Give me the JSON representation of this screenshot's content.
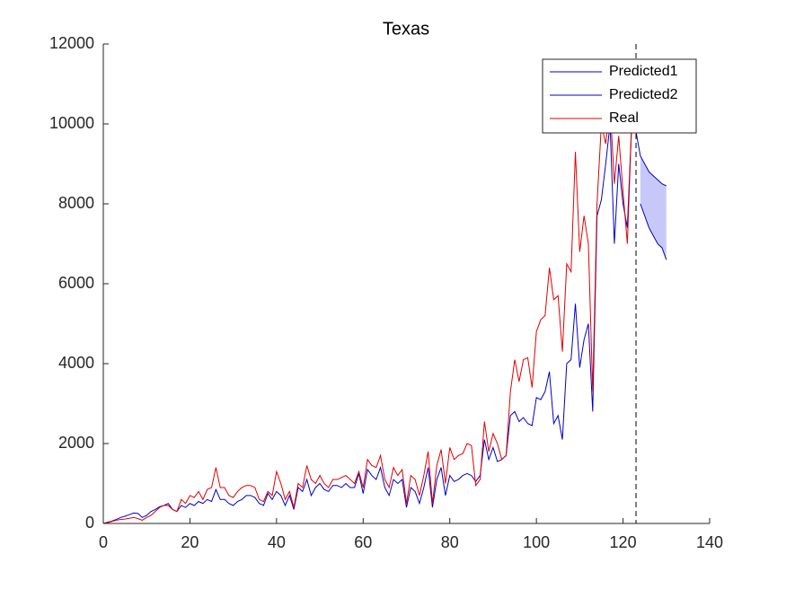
{
  "chart_data": {
    "type": "line",
    "title": "Texas",
    "x": [
      0,
      1,
      2,
      3,
      4,
      5,
      6,
      7,
      8,
      9,
      10,
      11,
      12,
      13,
      14,
      15,
      16,
      17,
      18,
      19,
      20,
      21,
      22,
      23,
      24,
      25,
      26,
      27,
      28,
      29,
      30,
      31,
      32,
      33,
      34,
      35,
      36,
      37,
      38,
      39,
      40,
      41,
      42,
      43,
      44,
      45,
      46,
      47,
      48,
      49,
      50,
      51,
      52,
      53,
      54,
      55,
      56,
      57,
      58,
      59,
      60,
      61,
      62,
      63,
      64,
      65,
      66,
      67,
      68,
      69,
      70,
      71,
      72,
      73,
      74,
      75,
      76,
      77,
      78,
      79,
      80,
      81,
      82,
      83,
      84,
      85,
      86,
      87,
      88,
      89,
      90,
      91,
      92,
      93,
      94,
      95,
      96,
      97,
      98,
      99,
      100,
      101,
      102,
      103,
      104,
      105,
      106,
      107,
      108,
      109,
      110,
      111,
      112,
      113,
      114,
      115,
      116,
      117,
      118,
      119,
      120,
      121,
      122,
      123,
      124,
      125,
      126,
      127,
      128,
      129,
      130
    ],
    "series": [
      {
        "name": "Predicted1",
        "color": "#0000c8",
        "values": [
          0,
          30,
          60,
          100,
          150,
          180,
          220,
          260,
          250,
          150,
          200,
          300,
          350,
          420,
          450,
          500,
          350,
          300,
          450,
          400,
          500,
          450,
          550,
          500,
          600,
          550,
          850,
          600,
          600,
          500,
          450,
          550,
          600,
          700,
          700,
          650,
          500,
          450,
          750,
          600,
          800,
          700,
          450,
          700,
          350,
          900,
          800,
          1100,
          700,
          900,
          1000,
          850,
          800,
          950,
          950,
          900,
          1000,
          900,
          900,
          1250,
          750,
          1350,
          1200,
          1100,
          1400,
          900,
          700,
          1100,
          1000,
          1100,
          400,
          900,
          800,
          500,
          900,
          1400,
          400,
          1100,
          1400,
          700,
          1200,
          1050,
          1100,
          1200,
          1250,
          1200,
          1050,
          1200,
          2100,
          1600,
          1900,
          1550,
          1600,
          1700,
          2700,
          2800,
          2550,
          2650,
          2500,
          2450,
          3150,
          3100,
          3300,
          3800,
          2500,
          2700,
          2100,
          4000,
          4100,
          5500,
          3900,
          4600,
          5000,
          2800,
          7700,
          8100,
          9000,
          10000,
          7000,
          9000,
          8000,
          7400,
          10000,
          9800,
          9200,
          9000,
          8800,
          8700,
          8600,
          8500,
          8450
        ]
      },
      {
        "name": "Predicted2",
        "color": "#0000c8",
        "values": [
          null,
          null,
          null,
          null,
          null,
          null,
          null,
          null,
          null,
          null,
          null,
          null,
          null,
          null,
          null,
          null,
          null,
          null,
          null,
          null,
          null,
          null,
          null,
          null,
          null,
          null,
          null,
          null,
          null,
          null,
          null,
          null,
          null,
          null,
          null,
          null,
          null,
          null,
          null,
          null,
          null,
          null,
          null,
          null,
          null,
          null,
          null,
          null,
          null,
          null,
          null,
          null,
          null,
          null,
          null,
          null,
          null,
          null,
          null,
          null,
          null,
          null,
          null,
          null,
          null,
          null,
          null,
          null,
          null,
          null,
          null,
          null,
          null,
          null,
          null,
          null,
          null,
          null,
          null,
          null,
          null,
          null,
          null,
          null,
          null,
          null,
          null,
          null,
          null,
          null,
          null,
          null,
          null,
          null,
          null,
          null,
          null,
          null,
          null,
          null,
          null,
          null,
          null,
          null,
          null,
          null,
          null,
          null,
          null,
          null,
          null,
          null,
          null,
          null,
          null,
          null,
          null,
          null,
          null,
          null,
          null,
          null,
          null,
          null,
          8000,
          7700,
          7400,
          7200,
          7000,
          6900,
          6600
        ]
      },
      {
        "name": "Real",
        "color": "#e00000",
        "values": [
          0,
          20,
          50,
          80,
          100,
          110,
          130,
          150,
          120,
          80,
          150,
          200,
          300,
          400,
          450,
          450,
          350,
          300,
          600,
          500,
          700,
          650,
          800,
          600,
          850,
          900,
          1400,
          900,
          900,
          700,
          650,
          800,
          900,
          950,
          950,
          900,
          600,
          550,
          800,
          700,
          1300,
          1000,
          600,
          800,
          400,
          1000,
          900,
          1450,
          1100,
          1000,
          1200,
          1000,
          900,
          1100,
          1100,
          1150,
          1200,
          1100,
          1000,
          1300,
          900,
          1600,
          1450,
          1400,
          1700,
          1100,
          900,
          1400,
          1200,
          1350,
          500,
          1200,
          1100,
          700,
          1200,
          1800,
          500,
          1450,
          1850,
          1000,
          1900,
          1600,
          1700,
          1750,
          2000,
          1950,
          950,
          1100,
          2550,
          1800,
          2250,
          2000,
          1600,
          1700,
          3300,
          4100,
          3550,
          4100,
          4150,
          3400,
          4800,
          5100,
          5200,
          6400,
          5600,
          5700,
          4300,
          6500,
          6300,
          9300,
          6800,
          7700,
          7000,
          3300,
          8000,
          10000,
          9500,
          10500,
          8500,
          9700,
          8300,
          7000,
          10000,
          null,
          null,
          null,
          null,
          null,
          null,
          null,
          null
        ]
      }
    ],
    "band_color": "#c8c8f8",
    "vline": 123,
    "xlim": [
      0,
      140
    ],
    "xticks": [
      0,
      20,
      40,
      60,
      80,
      100,
      120,
      140
    ],
    "ylim": [
      0,
      12000
    ],
    "yticks": [
      0,
      2000,
      4000,
      6000,
      8000,
      10000,
      12000
    ],
    "legend": "northeast"
  }
}
